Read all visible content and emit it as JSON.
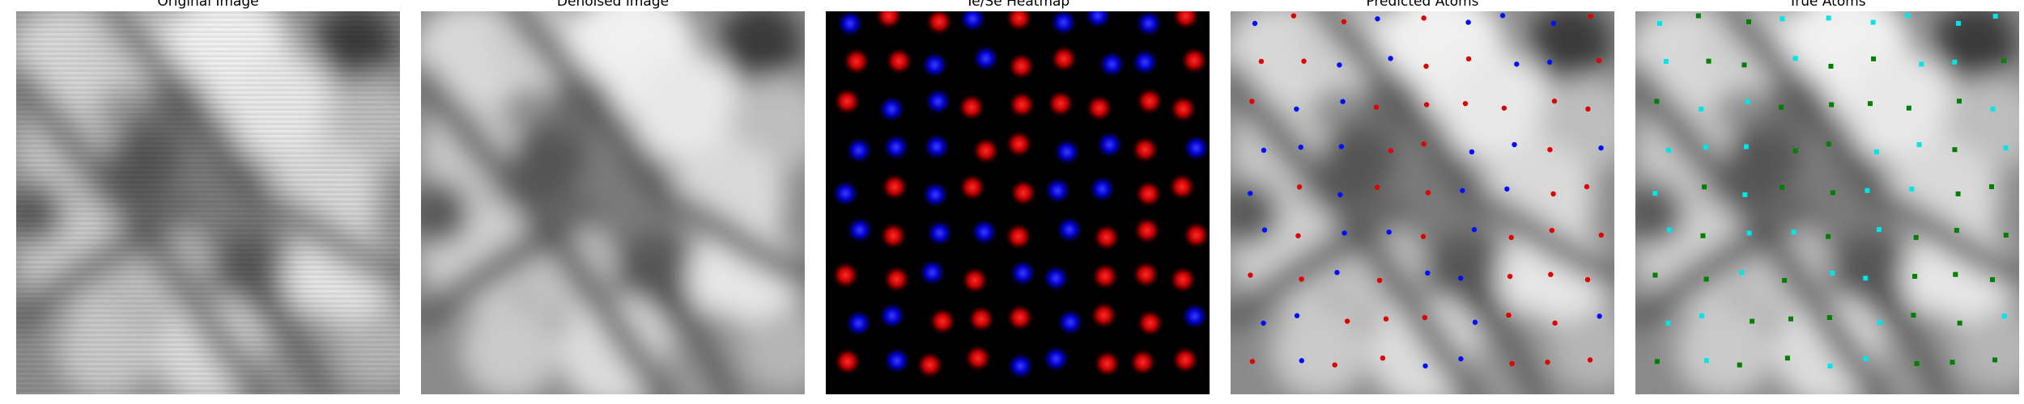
{
  "panels": [
    {
      "title": "Original Image"
    },
    {
      "title": "Denoised Image"
    },
    {
      "title": "Te/Se Heatmap"
    },
    {
      "title": "Predicted Atoms"
    },
    {
      "title": "True Atoms"
    }
  ],
  "colors": {
    "te": "#e00000",
    "se": "#0010ff",
    "true_a": "#00e5e5",
    "true_b": "#008000",
    "heat_bg": "#000000"
  },
  "lattice": {
    "cols": 9,
    "rows": 9,
    "predicted_species": [
      "b",
      "r",
      "r",
      "b",
      "r",
      "b",
      "b",
      "b",
      "r",
      "r",
      "r",
      "b",
      "b",
      "r",
      "r",
      "b",
      "b",
      "r",
      "r",
      "b",
      "b",
      "r",
      "r",
      "r",
      "r",
      "r",
      "r",
      "b",
      "b",
      "b",
      "r",
      "r",
      "b",
      "b",
      "r",
      "b",
      "b",
      "r",
      "b",
      "r",
      "r",
      "b",
      "b",
      "r",
      "r",
      "b",
      "r",
      "b",
      "b",
      "r",
      "b",
      "r",
      "r",
      "r",
      "r",
      "r",
      "b",
      "r",
      "b",
      "b",
      "r",
      "r",
      "r",
      "b",
      "b",
      "r",
      "r",
      "r",
      "b",
      "r",
      "r",
      "b",
      "r",
      "b",
      "r",
      "r",
      "b",
      "b",
      "r",
      "r",
      "r"
    ],
    "true_species": [
      "a",
      "b",
      "b",
      "a",
      "a",
      "a",
      "a",
      "a",
      "a",
      "a",
      "b",
      "b",
      "a",
      "b",
      "b",
      "a",
      "a",
      "b",
      "b",
      "a",
      "a",
      "b",
      "b",
      "b",
      "b",
      "b",
      "a",
      "a",
      "a",
      "a",
      "b",
      "b",
      "a",
      "a",
      "b",
      "a",
      "a",
      "b",
      "a",
      "b",
      "b",
      "a",
      "a",
      "b",
      "b",
      "a",
      "b",
      "a",
      "a",
      "b",
      "a",
      "b",
      "b",
      "b",
      "b",
      "b",
      "a",
      "b",
      "a",
      "a",
      "b",
      "b",
      "b",
      "a",
      "a",
      "b",
      "b",
      "b",
      "a",
      "b",
      "b",
      "a",
      "b",
      "a",
      "b",
      "b",
      "a",
      "a",
      "b",
      "b",
      "b"
    ]
  }
}
